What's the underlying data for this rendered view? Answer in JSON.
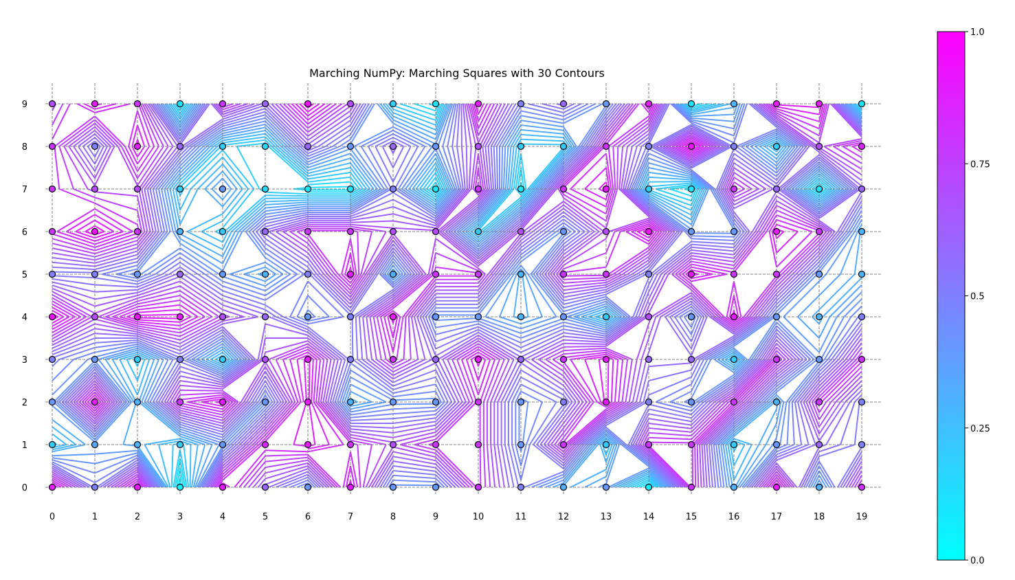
{
  "chart_data": {
    "type": "contour",
    "title": "Marching NumPy: Marching Squares with 30 Contours",
    "xlabel": "",
    "ylabel": "",
    "x_ticks": [
      "0",
      "1",
      "2",
      "3",
      "4",
      "5",
      "6",
      "7",
      "8",
      "9",
      "10",
      "11",
      "12",
      "13",
      "14",
      "15",
      "16",
      "17",
      "18",
      "19"
    ],
    "y_ticks": [
      "0",
      "1",
      "2",
      "3",
      "4",
      "5",
      "6",
      "7",
      "8",
      "9"
    ],
    "xlim": [
      0,
      19
    ],
    "ylim": [
      0,
      9
    ],
    "grid": true,
    "contour_levels": 30,
    "colormap": "cool",
    "colormap_colors": [
      "#00ffff",
      "#ff00ff"
    ],
    "colorbar": {
      "ticks": [
        "0.0",
        "0.25",
        "0.5",
        "0.75",
        "1.0"
      ],
      "range": [
        0,
        1
      ],
      "placement": "right"
    },
    "grid_values": [
      [
        0.9,
        0.5,
        0.9,
        0.05,
        0.9,
        0.6,
        0.4,
        0.9,
        0.4,
        0.4,
        0.8,
        0.5,
        0.3,
        0.4,
        0.05,
        0.8,
        0.3,
        0.9,
        0.3,
        0.8
      ],
      [
        0.2,
        0.35,
        0.3,
        0.2,
        0.4,
        0.85,
        0.9,
        0.8,
        0.7,
        0.8,
        0.8,
        0.4,
        0.8,
        0.2,
        0.8,
        0.8,
        0.2,
        0.4,
        0.6,
        0.5
      ],
      [
        0.4,
        0.9,
        0.3,
        0.8,
        0.9,
        0.4,
        0.9,
        0.3,
        0.4,
        0.4,
        0.8,
        0.4,
        0.5,
        0.9,
        0.5,
        0.4,
        0.8,
        0.3,
        0.8,
        0.5
      ],
      [
        0.5,
        0.4,
        0.2,
        0.5,
        0.2,
        0.7,
        0.9,
        0.5,
        0.8,
        0.6,
        0.9,
        0.6,
        0.8,
        0.9,
        0.6,
        0.6,
        0.2,
        0.8,
        0.4,
        0.8
      ],
      [
        0.95,
        0.7,
        0.9,
        0.9,
        0.7,
        0.6,
        0.4,
        0.5,
        0.9,
        0.4,
        0.4,
        0.3,
        0.4,
        0.2,
        0.7,
        0.4,
        0.9,
        0.4,
        0.3,
        0.5
      ],
      [
        0.5,
        0.5,
        0.4,
        0.6,
        0.4,
        0.3,
        0.5,
        0.9,
        0.3,
        0.8,
        0.8,
        0.3,
        0.8,
        0.8,
        0.5,
        0.9,
        0.8,
        0.8,
        0.4,
        0.3
      ],
      [
        0.8,
        0.95,
        0.8,
        0.3,
        0.2,
        0.6,
        0.8,
        0.8,
        0.7,
        0.7,
        0.2,
        0.7,
        0.4,
        0.7,
        0.95,
        0.4,
        0.4,
        0.9,
        0.8,
        0.3
      ],
      [
        0.8,
        0.7,
        0.7,
        0.2,
        0.4,
        0.15,
        0.1,
        0.1,
        0.5,
        0.1,
        0.8,
        0.1,
        0.8,
        0.9,
        0.2,
        0.1,
        0.8,
        0.6,
        0.1,
        0.6
      ],
      [
        0.8,
        0.5,
        0.9,
        0.6,
        0.2,
        0.15,
        0.6,
        0.4,
        0.6,
        0.4,
        0.7,
        0.2,
        0.2,
        0.8,
        0.5,
        0.95,
        0.5,
        0.2,
        0.7,
        0.85
      ],
      [
        0.7,
        0.9,
        0.8,
        0.1,
        0.8,
        0.6,
        0.95,
        0.7,
        0.2,
        0.1,
        0.9,
        0.5,
        0.6,
        0.4,
        0.9,
        0.1,
        0.3,
        0.9,
        0.9,
        0.1
      ]
    ]
  }
}
